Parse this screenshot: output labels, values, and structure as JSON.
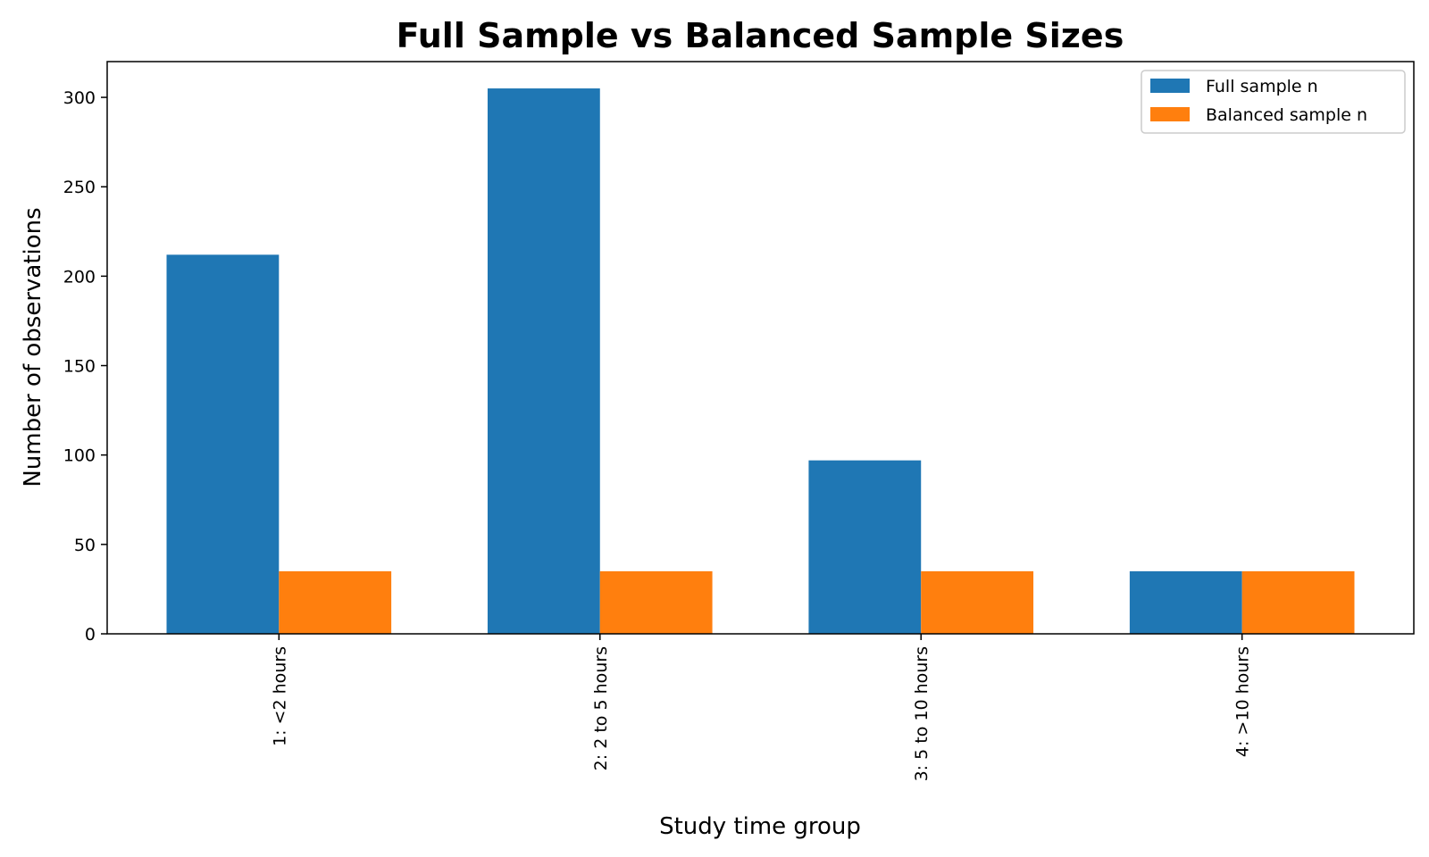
{
  "chart_data": {
    "type": "bar",
    "title": "Full Sample vs Balanced Sample Sizes",
    "xlabel": "Study time group",
    "ylabel": "Number of observations",
    "categories": [
      "1: <2 hours",
      "2: 2 to 5 hours",
      "3: 5 to 10 hours",
      "4: >10 hours"
    ],
    "series": [
      {
        "name": "Full sample n",
        "color": "#1f77b4",
        "values": [
          212,
          305,
          97,
          35
        ]
      },
      {
        "name": "Balanced sample n",
        "color": "#ff7f0e",
        "values": [
          35,
          35,
          35,
          35
        ]
      }
    ],
    "ylim": [
      0,
      320
    ],
    "yticks": [
      "0",
      "50",
      "100",
      "150",
      "200",
      "250",
      "300"
    ],
    "grid": false,
    "legend_position": "top-right"
  }
}
